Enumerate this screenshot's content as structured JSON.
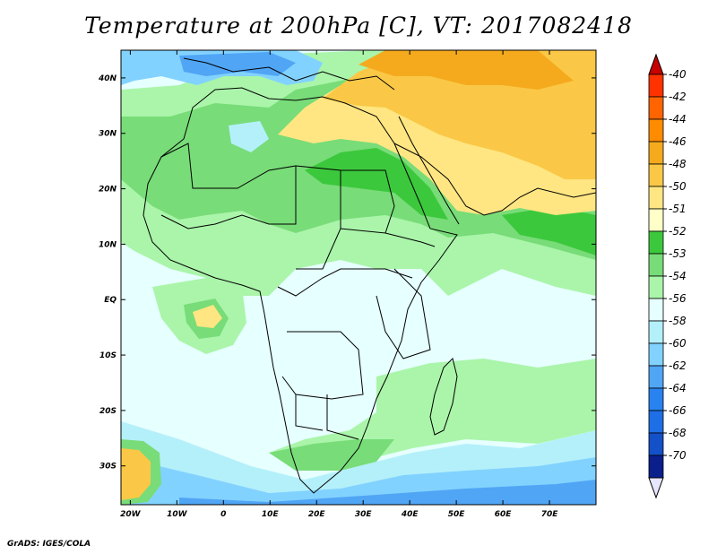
{
  "title": "Temperature at 200hPa [C], VT: 2017082418",
  "footer": "GrADS: IGES/COLA",
  "map": {
    "projection": "lat-lon",
    "lon_range": [
      -22,
      80
    ],
    "lat_range": [
      -37,
      45
    ],
    "lon_ticks": [
      {
        "value": -20,
        "label": "20W"
      },
      {
        "value": -10,
        "label": "10W"
      },
      {
        "value": 0,
        "label": "0"
      },
      {
        "value": 10,
        "label": "10E"
      },
      {
        "value": 20,
        "label": "20E"
      },
      {
        "value": 30,
        "label": "30E"
      },
      {
        "value": 40,
        "label": "40E"
      },
      {
        "value": 50,
        "label": "50E"
      },
      {
        "value": 60,
        "label": "60E"
      },
      {
        "value": 70,
        "label": "70E"
      }
    ],
    "lat_ticks": [
      {
        "value": 40,
        "label": "40N"
      },
      {
        "value": 30,
        "label": "30N"
      },
      {
        "value": 20,
        "label": "20N"
      },
      {
        "value": 10,
        "label": "10N"
      },
      {
        "value": 0,
        "label": "EQ"
      },
      {
        "value": -10,
        "label": "10S"
      },
      {
        "value": -20,
        "label": "20S"
      },
      {
        "value": -30,
        "label": "30S"
      }
    ]
  },
  "colorbar": {
    "upper_extend_color": "#c80000",
    "lower_extend_color": "#e6e6ff",
    "bins": [
      {
        "label": "-40",
        "color": "#ff3200"
      },
      {
        "label": "-42",
        "color": "#ff6400"
      },
      {
        "label": "-44",
        "color": "#ff8c00"
      },
      {
        "label": "-46",
        "color": "#f5aa1e"
      },
      {
        "label": "-48",
        "color": "#fac846"
      },
      {
        "label": "-50",
        "color": "#ffe682"
      },
      {
        "label": "-51",
        "color": "#ffffc8"
      },
      {
        "label": "-52",
        "color": "#3cc83c"
      },
      {
        "label": "-53",
        "color": "#78dc78"
      },
      {
        "label": "-54",
        "color": "#aaf5aa"
      },
      {
        "label": "-56",
        "color": "#e6ffff"
      },
      {
        "label": "-58",
        "color": "#b4f0fa"
      },
      {
        "label": "-60",
        "color": "#82d2ff"
      },
      {
        "label": "-62",
        "color": "#50a5f5"
      },
      {
        "label": "-64",
        "color": "#2882f0"
      },
      {
        "label": "-66",
        "color": "#1e6ee6"
      },
      {
        "label": "-68",
        "color": "#1450c8"
      },
      {
        "label": "-70",
        "color": "#0a1e8c"
      }
    ]
  },
  "palette": {
    "ocean_default": "#e6ffff",
    "green_light": "#aaf5aa",
    "green_mid": "#78dc78",
    "green_dark": "#3cc83c",
    "yellow_pale": "#ffe682",
    "orange_light": "#fac846",
    "orange": "#f5aa1e",
    "blue_light": "#82d2ff",
    "blue_mid": "#50a5f5",
    "blue_dark": "#2882f0"
  }
}
